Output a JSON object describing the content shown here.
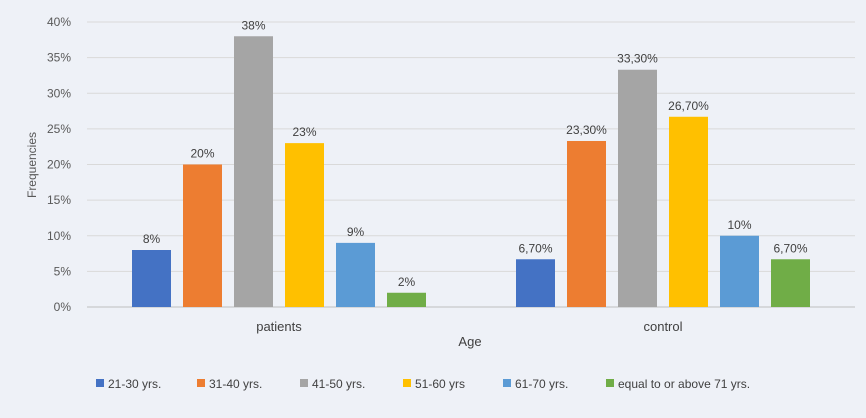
{
  "chart_data": {
    "type": "bar",
    "title": "",
    "xlabel": "Age",
    "ylabel": "Frequencies",
    "ylim": [
      0,
      40
    ],
    "yticks": [
      "0%",
      "5%",
      "10%",
      "15%",
      "20%",
      "25%",
      "30%",
      "35%",
      "40%"
    ],
    "grid": true,
    "legend_position": "bottom",
    "categories": [
      "patients",
      "control"
    ],
    "series": [
      {
        "name": "21-30 yrs.",
        "color": "#4472c4",
        "values": [
          8,
          6.7
        ],
        "labels": [
          "8%",
          "6,70%"
        ]
      },
      {
        "name": "31-40 yrs.",
        "color": "#ed7d31",
        "values": [
          20,
          23.3
        ],
        "labels": [
          "20%",
          "23,30%"
        ]
      },
      {
        "name": "41-50 yrs.",
        "color": "#a5a5a5",
        "values": [
          38,
          33.3
        ],
        "labels": [
          "38%",
          "33,30%"
        ]
      },
      {
        "name": "51-60 yrs",
        "color": "#ffc000",
        "values": [
          23,
          26.7
        ],
        "labels": [
          "23%",
          "26,70%"
        ]
      },
      {
        "name": "61-70 yrs.",
        "color": "#5b9bd5",
        "values": [
          9,
          10
        ],
        "labels": [
          "9%",
          "10%"
        ]
      },
      {
        "name": "equal to or above 71 yrs.",
        "color": "#70ad47",
        "values": [
          2,
          6.7
        ],
        "labels": [
          "2%",
          "6,70%"
        ]
      }
    ]
  }
}
